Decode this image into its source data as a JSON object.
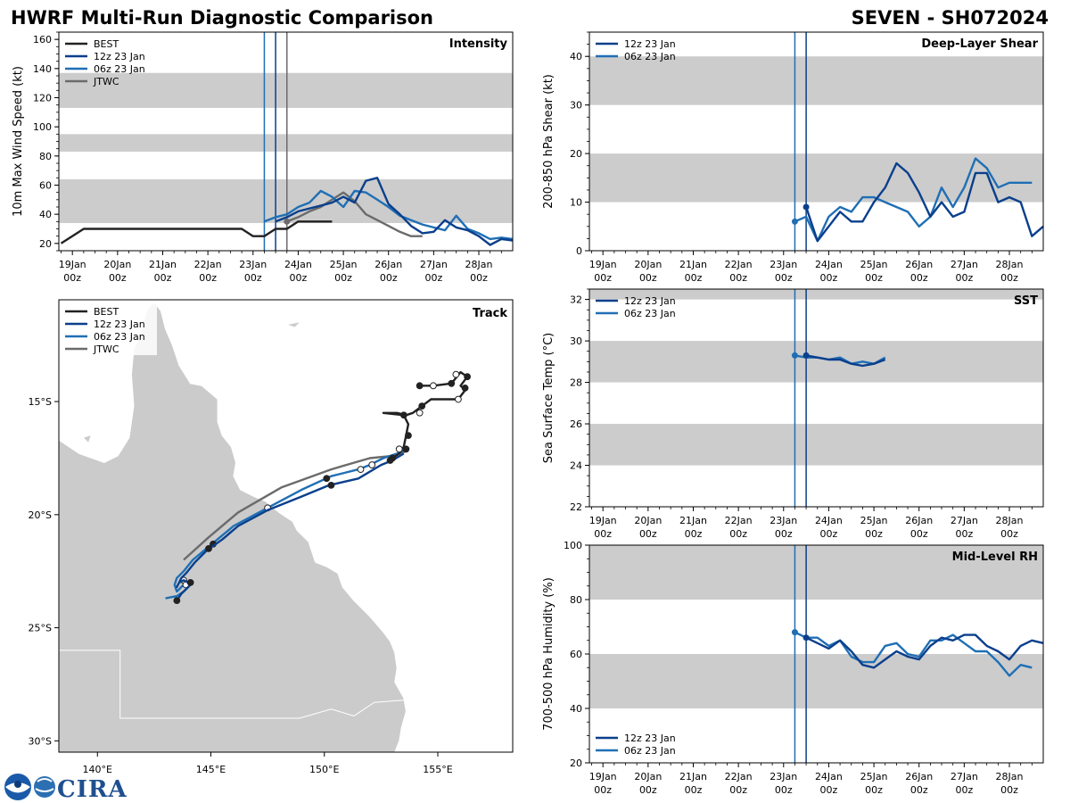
{
  "header": {
    "left_title": "HWRF Multi-Run Diagnostic Comparison",
    "right_title": "SEVEN - SH072024"
  },
  "colors": {
    "best": "#222222",
    "run12": "#0a3f8c",
    "run06": "#1f6fb5",
    "jtwc": "#6b6b6b",
    "band": "#cccccc",
    "land": "#cbcbcb"
  },
  "legend_labels": {
    "best": "BEST",
    "run12": "12z 23 Jan",
    "run06": "06z 23 Jan",
    "jtwc": "JTWC"
  },
  "time_axis": {
    "tick_labels": [
      [
        "19Jan",
        "00z"
      ],
      [
        "20Jan",
        "00z"
      ],
      [
        "21Jan",
        "00z"
      ],
      [
        "22Jan",
        "00z"
      ],
      [
        "23Jan",
        "00z"
      ],
      [
        "24Jan",
        "00z"
      ],
      [
        "25Jan",
        "00z"
      ],
      [
        "26Jan",
        "00z"
      ],
      [
        "27Jan",
        "00z"
      ],
      [
        "28Jan",
        "00z"
      ]
    ],
    "xlim_days": [
      -0.3,
      9.75
    ],
    "run_lines": [
      4.25,
      4.5,
      4.75
    ]
  },
  "logo": {
    "text": "CIRA"
  },
  "chart_data": [
    {
      "id": "intensity",
      "type": "line",
      "title": "Intensity",
      "ylabel": "10m Max Wind Speed (kt)",
      "ylim": [
        15,
        165
      ],
      "yticks": [
        20,
        40,
        60,
        80,
        100,
        120,
        140,
        160
      ],
      "bands": [
        [
          34,
          64
        ],
        [
          83,
          95
        ],
        [
          113,
          137
        ]
      ],
      "legend": [
        "best",
        "run12",
        "run06",
        "jtwc"
      ],
      "series": [
        {
          "key": "best",
          "name": "BEST",
          "x": [
            -0.25,
            0.25,
            0.5,
            1,
            1.5,
            2,
            2.5,
            3,
            3.75,
            4,
            4.25,
            4.5,
            4.75,
            5,
            5.25,
            5.5,
            5.75
          ],
          "y": [
            20,
            30,
            30,
            30,
            30,
            30,
            30,
            30,
            30,
            25,
            25,
            30,
            30,
            35,
            35,
            35,
            35
          ]
        },
        {
          "key": "run12",
          "name": "12z 23 Jan",
          "x": [
            4.5,
            4.75,
            5,
            5.25,
            5.5,
            5.75,
            6,
            6.25,
            6.5,
            6.75,
            7,
            7.25,
            7.5,
            7.75,
            8,
            8.25,
            8.5,
            8.75,
            9,
            9.25,
            9.5,
            9.75
          ],
          "y": [
            35,
            38,
            42,
            44,
            46,
            48,
            52,
            48,
            63,
            65,
            47,
            40,
            32,
            27,
            28,
            36,
            31,
            29,
            25,
            19,
            23,
            22
          ]
        },
        {
          "key": "run06",
          "name": "06z 23 Jan",
          "x": [
            4.25,
            4.5,
            4.75,
            5,
            5.25,
            5.5,
            5.75,
            6,
            6.25,
            6.5,
            6.75,
            7,
            7.25,
            7.5,
            7.75,
            8,
            8.25,
            8.5,
            8.75,
            9,
            9.25,
            9.5,
            9.75
          ],
          "y": [
            35,
            38,
            40,
            45,
            48,
            56,
            52,
            45,
            56,
            55,
            50,
            45,
            39,
            36,
            33,
            31,
            29,
            39,
            30,
            27,
            23,
            24,
            23
          ]
        },
        {
          "key": "jtwc",
          "name": "JTWC",
          "x": [
            4.75,
            5,
            5.25,
            5.5,
            5.75,
            6,
            6.25,
            6.5,
            6.75,
            7,
            7.25,
            7.5,
            7.75
          ],
          "y": [
            35,
            38,
            42,
            45,
            50,
            55,
            49,
            40,
            36,
            32,
            28,
            25,
            25
          ]
        }
      ],
      "markers": [
        {
          "key": "jtwc",
          "x": 4.75,
          "y": 35
        }
      ]
    },
    {
      "id": "shear",
      "type": "line",
      "title": "Deep-Layer Shear",
      "ylabel": "200-850 hPa Shear (kt)",
      "ylim": [
        0,
        45
      ],
      "yticks": [
        0,
        10,
        20,
        30,
        40
      ],
      "bands": [
        [
          10,
          20
        ],
        [
          30,
          40
        ]
      ],
      "legend": [
        "run12",
        "run06"
      ],
      "series": [
        {
          "key": "run12",
          "name": "12z 23 Jan",
          "x": [
            4.5,
            4.75,
            5,
            5.25,
            5.5,
            5.75,
            6,
            6.25,
            6.5,
            6.75,
            7,
            7.25,
            7.5,
            7.75,
            8,
            8.25,
            8.5,
            8.75,
            9,
            9.25,
            9.5,
            9.75
          ],
          "y": [
            9,
            2,
            5,
            8,
            6,
            6,
            10,
            13,
            18,
            16,
            12,
            7,
            10,
            7,
            8,
            16,
            16,
            10,
            11,
            10,
            3,
            5
          ]
        },
        {
          "key": "run06",
          "name": "06z 23 Jan",
          "x": [
            4.25,
            4.5,
            4.75,
            5,
            5.25,
            5.5,
            5.75,
            6,
            6.25,
            6.5,
            6.75,
            7,
            7.25,
            7.5,
            7.75,
            8,
            8.25,
            8.5,
            8.75,
            9,
            9.25,
            9.5
          ],
          "y": [
            6,
            7,
            2,
            7,
            9,
            8,
            11,
            11,
            10,
            9,
            8,
            5,
            7,
            13,
            9,
            13,
            19,
            17,
            13,
            14,
            14,
            14
          ]
        }
      ],
      "markers": [
        {
          "key": "run06",
          "x": 4.25,
          "y": 6
        },
        {
          "key": "run12",
          "x": 4.5,
          "y": 9
        }
      ]
    },
    {
      "id": "sst",
      "type": "line",
      "title": "SST",
      "ylabel": "Sea Surface Temp (°C)",
      "ylim": [
        22,
        32.5
      ],
      "yticks": [
        22,
        24,
        26,
        28,
        30,
        32
      ],
      "bands": [
        [
          24,
          26
        ],
        [
          28,
          30
        ],
        [
          32,
          32.5
        ]
      ],
      "legend": [
        "run12",
        "run06"
      ],
      "series": [
        {
          "key": "run12",
          "name": "12z 23 Jan",
          "x": [
            4.5,
            4.75,
            5,
            5.25,
            5.5,
            5.75,
            6,
            6.25
          ],
          "y": [
            29.3,
            29.2,
            29.1,
            29.1,
            28.9,
            28.8,
            28.9,
            29.1
          ]
        },
        {
          "key": "run06",
          "name": "06z 23 Jan",
          "x": [
            4.25,
            4.5,
            4.75,
            5,
            5.25,
            5.5,
            5.75,
            6,
            6.25
          ],
          "y": [
            29.3,
            29.2,
            29.2,
            29.1,
            29.2,
            28.9,
            29.0,
            28.9,
            29.2
          ]
        }
      ],
      "markers": [
        {
          "key": "run06",
          "x": 4.25,
          "y": 29.3
        },
        {
          "key": "run12",
          "x": 4.5,
          "y": 29.3
        }
      ]
    },
    {
      "id": "rh",
      "type": "line",
      "title": "Mid-Level RH",
      "ylabel": "700-500 hPa Humidity (%)",
      "ylim": [
        20,
        100
      ],
      "yticks": [
        20,
        40,
        60,
        80,
        100
      ],
      "bands": [
        [
          40,
          60
        ],
        [
          80,
          100
        ]
      ],
      "legend": [
        "run12",
        "run06"
      ],
      "legend_pos": "bottom-left",
      "series": [
        {
          "key": "run12",
          "name": "12z 23 Jan",
          "x": [
            4.5,
            4.75,
            5,
            5.25,
            5.5,
            5.75,
            6,
            6.25,
            6.5,
            6.75,
            7,
            7.25,
            7.5,
            7.75,
            8,
            8.25,
            8.5,
            8.75,
            9,
            9.25,
            9.5,
            9.75
          ],
          "y": [
            66,
            64,
            62,
            65,
            61,
            56,
            55,
            58,
            61,
            59,
            58,
            63,
            66,
            65,
            67,
            67,
            63,
            61,
            58,
            63,
            65,
            64
          ]
        },
        {
          "key": "run06",
          "name": "06z 23 Jan",
          "x": [
            4.25,
            4.5,
            4.75,
            5,
            5.25,
            5.5,
            5.75,
            6,
            6.25,
            6.5,
            6.75,
            7,
            7.25,
            7.5,
            7.75,
            8,
            8.25,
            8.5,
            8.75,
            9,
            9.25,
            9.5
          ],
          "y": [
            68,
            66,
            66,
            63,
            65,
            59,
            57,
            57,
            63,
            64,
            60,
            59,
            65,
            65,
            67,
            64,
            61,
            61,
            57,
            52,
            56,
            55
          ]
        }
      ],
      "markers": [
        {
          "key": "run06",
          "x": 4.25,
          "y": 68
        },
        {
          "key": "run12",
          "x": 4.5,
          "y": 66
        }
      ]
    },
    {
      "id": "track",
      "type": "map",
      "title": "Track",
      "lon_range": [
        138.3,
        158.3
      ],
      "lat_range": [
        -30.5,
        -10.5
      ],
      "lon_ticks": [
        140,
        145,
        150,
        155
      ],
      "lon_tick_labels": [
        "140°E",
        "145°E",
        "150°E",
        "155°E"
      ],
      "lat_ticks": [
        -15,
        -20,
        -25,
        -30
      ],
      "lat_tick_labels": [
        "15°S",
        "20°S",
        "25°S",
        "30°S"
      ],
      "legend": [
        "best",
        "run12",
        "run06",
        "jtwc"
      ],
      "tracks": [
        {
          "key": "best",
          "name": "BEST",
          "lon": [
            154.2,
            154.8,
            155.6,
            156.0,
            156.3,
            156.0,
            156.2,
            155.9,
            155.3,
            154.7,
            154.3,
            153.9,
            153.6,
            153.2,
            152.6,
            153.5,
            153.7,
            153.6,
            153.5,
            153.3,
            153.0,
            152.9
          ],
          "lat": [
            -14.3,
            -14.3,
            -14.2,
            -13.7,
            -13.9,
            -14.3,
            -14.5,
            -14.9,
            -14.9,
            -14.9,
            -15.2,
            -15.5,
            -15.6,
            -15.5,
            -15.5,
            -15.6,
            -16.0,
            -16.5,
            -17.0,
            -17.3,
            -17.5,
            -17.6
          ],
          "dots": [
            [
              154.2,
              -14.3,
              1
            ],
            [
              154.8,
              -14.3,
              0
            ],
            [
              155.6,
              -14.2,
              1
            ],
            [
              155.8,
              -13.8,
              0
            ],
            [
              156.3,
              -13.9,
              1
            ],
            [
              156.2,
              -14.4,
              1
            ],
            [
              155.9,
              -14.9,
              0
            ],
            [
              154.3,
              -15.2,
              1
            ],
            [
              154.2,
              -15.5,
              0
            ],
            [
              153.5,
              -15.6,
              1
            ],
            [
              153.7,
              -16.5,
              1
            ],
            [
              153.3,
              -17.1,
              0
            ],
            [
              152.9,
              -17.6,
              1
            ]
          ]
        },
        {
          "key": "run12",
          "name": "12z 23 Jan",
          "lon": [
            153.5,
            153.0,
            152.5,
            151.5,
            150.2,
            149.0,
            147.5,
            146.2,
            145.5,
            144.8,
            144.3,
            143.9,
            143.7,
            143.6,
            143.5,
            143.6,
            143.8,
            144.0,
            144.1,
            143.9,
            143.7,
            143.5
          ],
          "lat": [
            -17.3,
            -17.6,
            -17.8,
            -18.4,
            -18.7,
            -19.2,
            -19.8,
            -20.5,
            -21.1,
            -21.6,
            -22.1,
            -22.6,
            -22.8,
            -23.0,
            -23.2,
            -23.0,
            -22.9,
            -23.0,
            -23.1,
            -23.3,
            -23.5,
            -23.8
          ],
          "dots": [
            [
              153.0,
              -17.5,
              1
            ],
            [
              150.3,
              -18.7,
              1
            ],
            [
              144.9,
              -21.5,
              1
            ],
            [
              144.1,
              -23.0,
              1
            ],
            [
              143.5,
              -23.8,
              1
            ]
          ]
        },
        {
          "key": "run06",
          "name": "06z 23 Jan",
          "lon": [
            153.6,
            153.2,
            152.6,
            152.0,
            151.5,
            150.3,
            149.0,
            147.5,
            146.0,
            144.8,
            144.2,
            143.8,
            143.5,
            143.4,
            143.5,
            143.7,
            143.9,
            144.0,
            143.8,
            143.5,
            143.0
          ],
          "lat": [
            -17.1,
            -17.3,
            -17.5,
            -17.8,
            -18.0,
            -18.3,
            -18.9,
            -19.7,
            -20.5,
            -21.5,
            -22.0,
            -22.5,
            -22.8,
            -23.1,
            -23.4,
            -23.2,
            -23.0,
            -23.2,
            -23.4,
            -23.6,
            -23.7
          ],
          "dots": [
            [
              153.6,
              -17.1,
              1
            ],
            [
              152.1,
              -17.8,
              0
            ],
            [
              151.6,
              -18.0,
              0
            ],
            [
              150.1,
              -18.4,
              1
            ],
            [
              147.5,
              -19.7,
              0
            ],
            [
              145.1,
              -21.3,
              1
            ],
            [
              143.8,
              -22.9,
              0
            ],
            [
              143.9,
              -23.1,
              0
            ]
          ]
        },
        {
          "key": "jtwc",
          "name": "JTWC",
          "lon": [
            153.6,
            153.0,
            152.0,
            150.3,
            148.1,
            146.2,
            144.9,
            143.8
          ],
          "lat": [
            -17.2,
            -17.4,
            -17.5,
            -18.0,
            -18.8,
            -19.9,
            -21.0,
            -22.0
          ],
          "dots": []
        }
      ]
    }
  ]
}
